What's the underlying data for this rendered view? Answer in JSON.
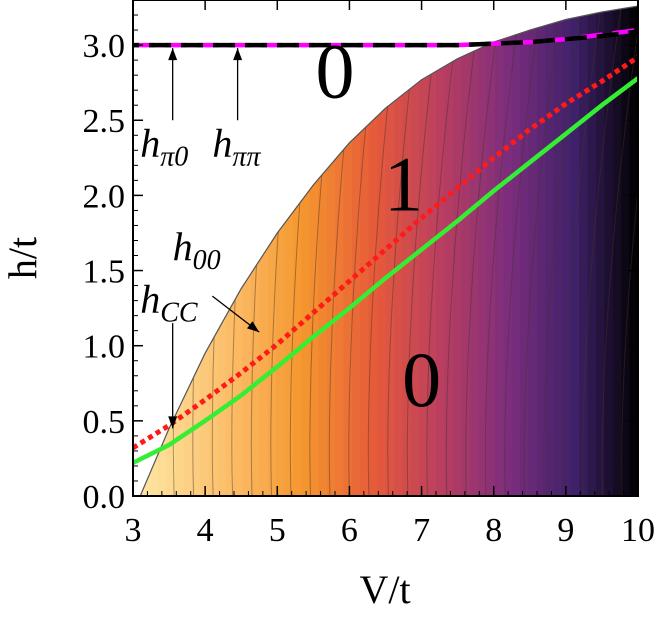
{
  "chart_data": {
    "type": "heatmap",
    "xlabel": "V/t",
    "ylabel": "h/t",
    "xlim": [
      3,
      10
    ],
    "ylim": [
      0,
      3.3
    ],
    "x_ticks": [
      3,
      4,
      5,
      6,
      7,
      8,
      9,
      10
    ],
    "y_ticks": [
      0.0,
      0.5,
      1.0,
      1.5,
      2.0,
      2.5,
      3.0
    ],
    "x_tick_labels": [
      "3",
      "4",
      "5",
      "6",
      "7",
      "8",
      "9",
      "10"
    ],
    "y_tick_labels": [
      "0.0",
      "0.5",
      "1.0",
      "1.5",
      "2.0",
      "2.5",
      "3.0"
    ],
    "grid": false,
    "colormap": [
      "#fde7a4",
      "#fcbf6b",
      "#f5962e",
      "#e65a3a",
      "#b83d62",
      "#7a2d7d",
      "#3e2168",
      "#000000"
    ],
    "region_labels": [
      {
        "text": "0",
        "x": 5.8,
        "y": 2.65
      },
      {
        "text": "1",
        "x": 6.75,
        "y": 1.9
      },
      {
        "text": "0",
        "x": 7.0,
        "y": 0.6
      }
    ],
    "series": [
      {
        "key": "h_pi0",
        "main": "h",
        "sub": "π0",
        "style": "dashed",
        "color": "#ff00ff",
        "x": [
          3.0,
          4.0,
          5.0,
          6.0,
          7.0,
          7.5,
          8.0,
          8.5,
          9.0,
          9.5,
          10.0
        ],
        "y": [
          3.0,
          3.0,
          3.0,
          3.0,
          3.0,
          3.0,
          3.01,
          3.02,
          3.04,
          3.07,
          3.1
        ]
      },
      {
        "key": "h_pipi",
        "main": "h",
        "sub": "ππ",
        "style": "dashed",
        "color": "#000000",
        "x": [
          3.0,
          4.0,
          5.0,
          6.0,
          7.0,
          7.5,
          8.0,
          8.5,
          9.0,
          9.5,
          10.0
        ],
        "y": [
          3.0,
          3.0,
          3.0,
          3.0,
          3.0,
          3.0,
          3.01,
          3.02,
          3.04,
          3.06,
          3.09
        ]
      },
      {
        "key": "h_00",
        "main": "h",
        "sub": "00",
        "style": "dotted",
        "color": "#ff1a1a",
        "x": [
          3.0,
          3.5,
          4.0,
          4.5,
          5.0,
          5.5,
          6.0,
          6.5,
          7.0,
          7.5,
          8.0,
          8.5,
          9.0,
          9.5,
          10.0
        ],
        "y": [
          0.32,
          0.47,
          0.64,
          0.82,
          1.01,
          1.22,
          1.43,
          1.64,
          1.85,
          2.05,
          2.25,
          2.44,
          2.61,
          2.76,
          2.92
        ]
      },
      {
        "key": "h_CC",
        "main": "h",
        "sub": "CC",
        "style": "solid",
        "color": "#33ee33",
        "x": [
          3.0,
          3.5,
          4.0,
          4.5,
          5.0,
          5.5,
          6.0,
          6.5,
          7.0,
          7.5,
          8.0,
          8.5,
          9.0,
          9.5,
          10.0
        ],
        "y": [
          0.22,
          0.34,
          0.5,
          0.67,
          0.86,
          1.06,
          1.25,
          1.45,
          1.64,
          1.83,
          2.03,
          2.22,
          2.41,
          2.6,
          2.78
        ]
      }
    ],
    "boundary": {
      "x": [
        3.1,
        3.5,
        4.0,
        4.5,
        5.0,
        5.5,
        6.0,
        6.5,
        7.0,
        7.5,
        8.0,
        8.5,
        9.0,
        9.5,
        10.0
      ],
      "y": [
        0.0,
        0.45,
        0.95,
        1.38,
        1.75,
        2.07,
        2.35,
        2.58,
        2.77,
        2.91,
        3.02,
        3.1,
        3.17,
        3.22,
        3.26
      ]
    },
    "annotations": [
      {
        "series": "h_pi0",
        "label_x": 3.1,
        "label_y": 2.26,
        "arrow_from": [
          3.55,
          2.5
        ],
        "arrow_to": [
          3.55,
          2.98
        ]
      },
      {
        "series": "h_pipi",
        "label_x": 4.1,
        "label_y": 2.26,
        "arrow_from": [
          4.45,
          2.5
        ],
        "arrow_to": [
          4.45,
          2.98
        ]
      },
      {
        "series": "h_00",
        "label_x": 3.55,
        "label_y": 1.57,
        "arrow_from": [
          4.1,
          1.33
        ],
        "arrow_to": [
          4.75,
          1.09
        ]
      },
      {
        "series": "h_CC",
        "label_x": 3.1,
        "label_y": 1.22,
        "arrow_from": [
          3.55,
          1.15
        ],
        "arrow_to": [
          3.55,
          0.45
        ]
      }
    ]
  }
}
